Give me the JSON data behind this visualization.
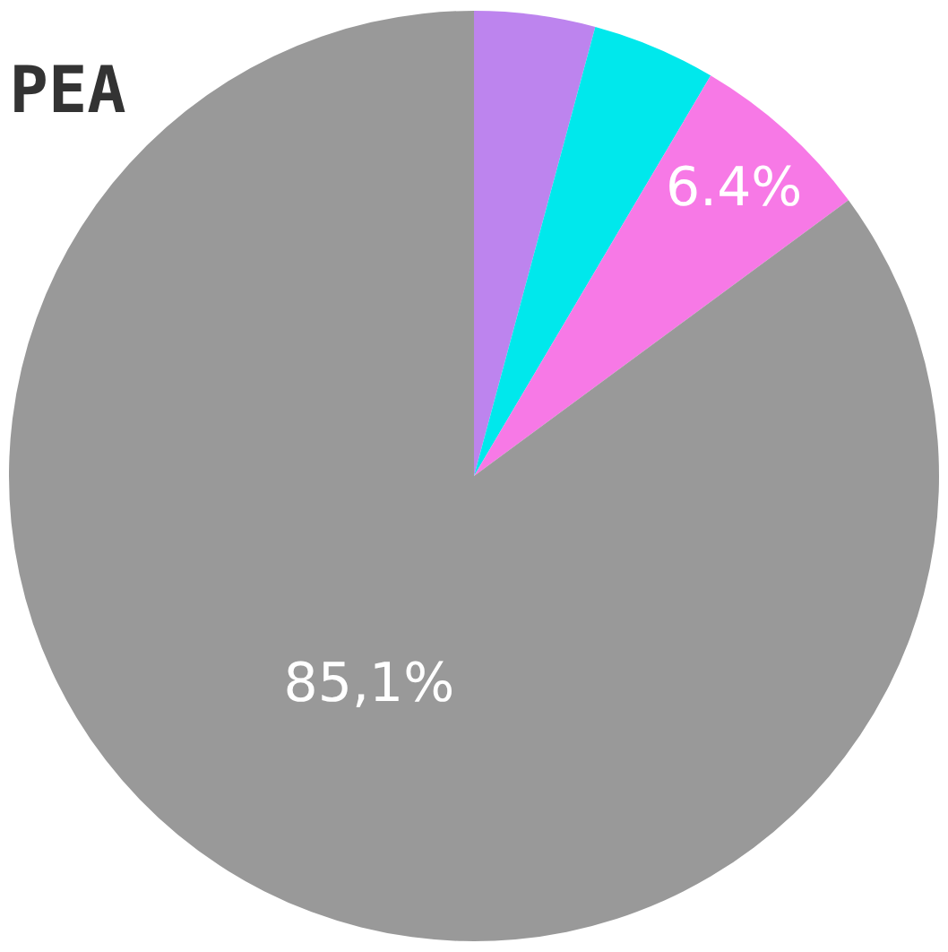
{
  "chart_data": {
    "type": "pie",
    "title": "PEA",
    "categories": [
      null,
      null,
      null,
      null
    ],
    "values": [
      4.2,
      4.3,
      6.4,
      85.1
    ],
    "colors": [
      "#bd84ee",
      "#00e8ec",
      "#f779e6",
      "#999999"
    ],
    "value_labels": [
      null,
      null,
      "6.4%",
      "85,1%"
    ],
    "legend": false
  }
}
